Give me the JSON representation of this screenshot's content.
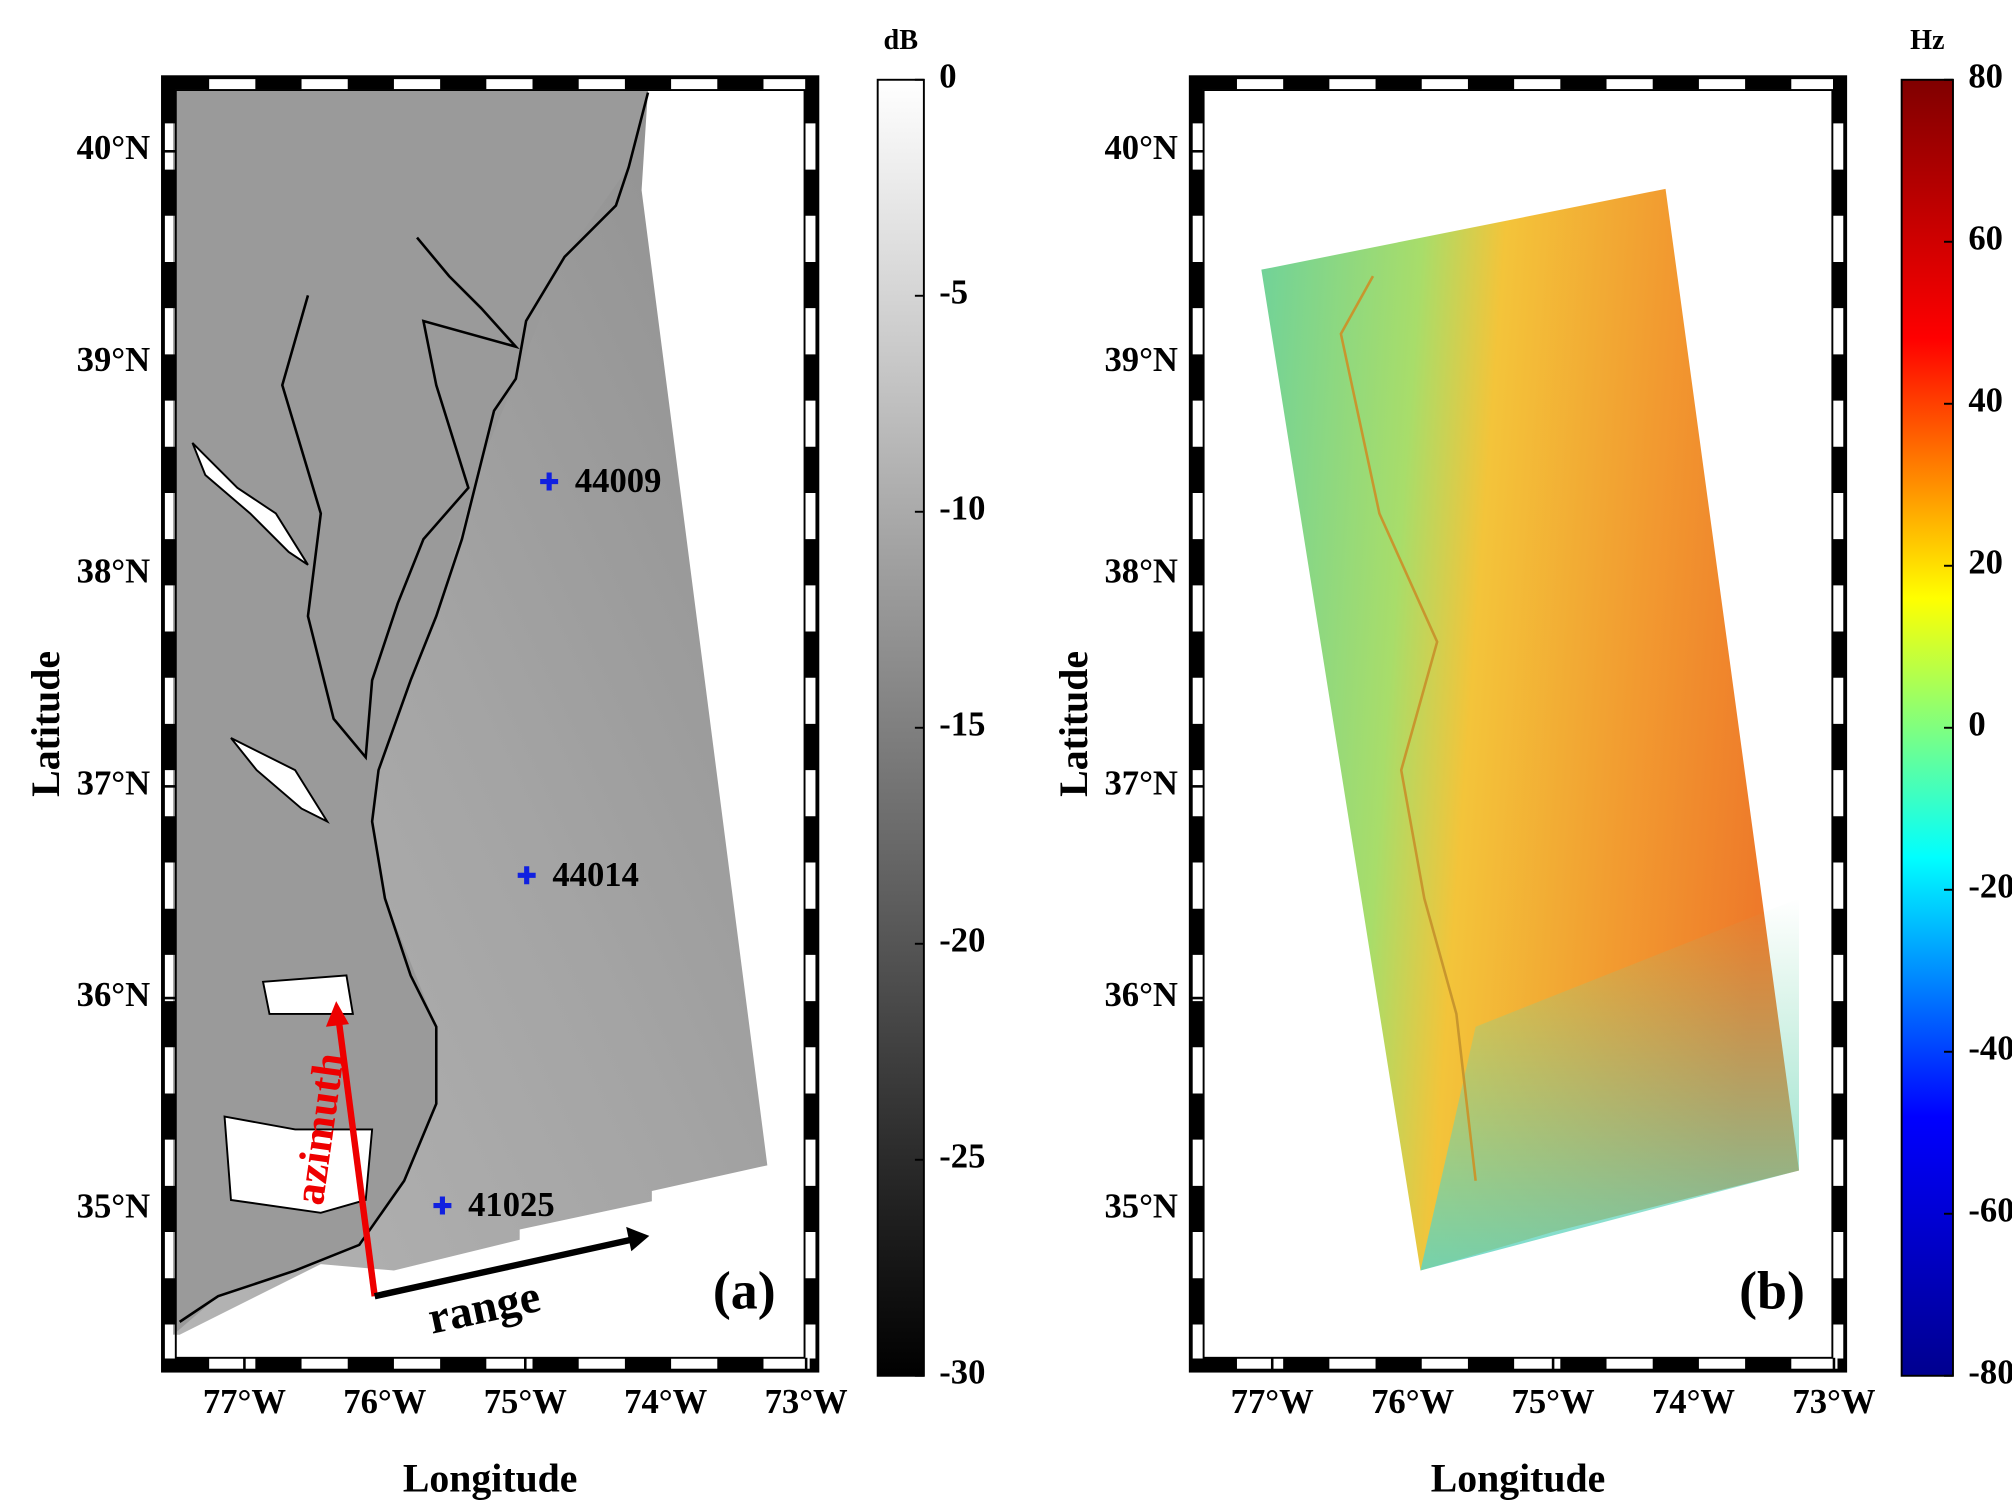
{
  "panels": [
    {
      "label": "(a)",
      "x_label": "Longitude",
      "y_label": "Latitude",
      "xlim": [
        -77.58,
        -72.92
      ],
      "ylim": [
        34.24,
        40.35
      ],
      "xticks": [
        {
          "value": -77,
          "label": "77°W"
        },
        {
          "value": -76,
          "label": "76°W"
        },
        {
          "value": -75,
          "label": "75°W"
        },
        {
          "value": -74,
          "label": "74°W"
        },
        {
          "value": -73,
          "label": "73°W"
        }
      ],
      "yticks": [
        {
          "value": 35,
          "label": "35°N"
        },
        {
          "value": 36,
          "label": "36°N"
        },
        {
          "value": 37,
          "label": "37°N"
        },
        {
          "value": 38,
          "label": "38°N"
        },
        {
          "value": 39,
          "label": "39°N"
        },
        {
          "value": 40,
          "label": "40°N"
        }
      ],
      "colorbar": {
        "unit": "dB",
        "lim": [
          -30,
          0
        ],
        "ticks": [
          0,
          -5,
          -10,
          -15,
          -20,
          -25,
          -30
        ],
        "colormap": "gray"
      },
      "buoys": [
        {
          "name": "44009",
          "lon": -74.83,
          "lat": 38.44
        },
        {
          "name": "44014",
          "lon": -74.99,
          "lat": 36.58
        },
        {
          "name": "41025",
          "lon": -75.59,
          "lat": 35.02
        }
      ],
      "annotations": {
        "azimuth": "azimuth",
        "range": "range"
      }
    },
    {
      "label": "(b)",
      "x_label": "Longitude",
      "y_label": "Latitude",
      "xlim": [
        -77.58,
        -72.92
      ],
      "ylim": [
        34.24,
        40.35
      ],
      "xticks": [
        {
          "value": -77,
          "label": "77°W"
        },
        {
          "value": -76,
          "label": "76°W"
        },
        {
          "value": -75,
          "label": "75°W"
        },
        {
          "value": -74,
          "label": "74°W"
        },
        {
          "value": -73,
          "label": "73°W"
        }
      ],
      "yticks": [
        {
          "value": 35,
          "label": "35°N"
        },
        {
          "value": 36,
          "label": "36°N"
        },
        {
          "value": 37,
          "label": "37°N"
        },
        {
          "value": 38,
          "label": "38°N"
        },
        {
          "value": 39,
          "label": "39°N"
        },
        {
          "value": 40,
          "label": "40°N"
        }
      ],
      "colorbar": {
        "unit": "Hz",
        "lim": [
          -80,
          80
        ],
        "ticks": [
          80,
          60,
          40,
          20,
          0,
          -20,
          -40,
          -60,
          -80
        ],
        "colormap": "jet"
      }
    }
  ]
}
